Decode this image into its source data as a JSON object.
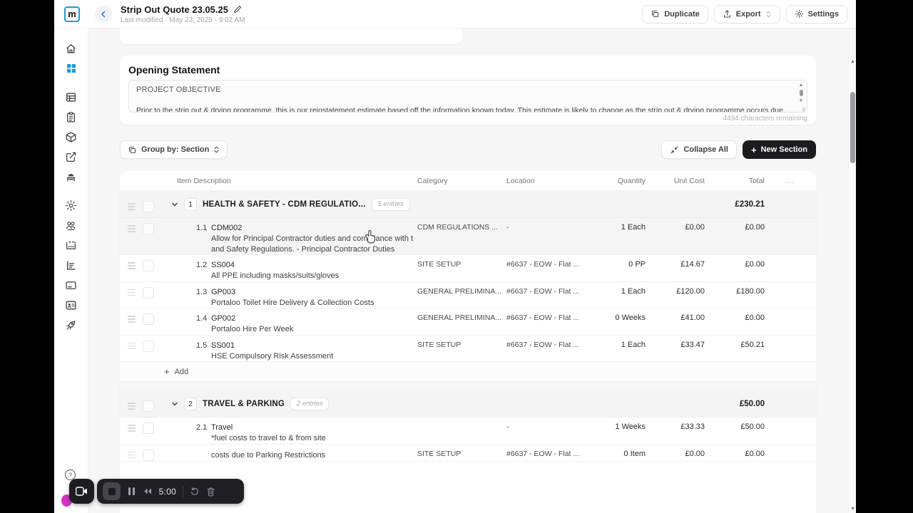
{
  "app": {
    "logo_text": "m",
    "accent_blue": "#1d9ad6",
    "dark_button": "#1c1c1f"
  },
  "header": {
    "title": "Strip Out Quote 23.05.25",
    "last_modified": "Last modified · May 23, 2025 · 9:02 AM",
    "duplicate_label": "Duplicate",
    "export_label": "Export",
    "settings_label": "Settings"
  },
  "sidebar": {
    "items": [
      "home",
      "dashboard",
      "table",
      "clipboard",
      "cube",
      "compose",
      "bench",
      "gear",
      "team",
      "card-dots",
      "report-chart",
      "credit-card",
      "contact-card",
      "rocket"
    ],
    "active_item": "dashboard"
  },
  "opening_statement": {
    "heading": "Opening Statement",
    "body_line1": "PROJECT OBJECTIVE",
    "body_clipped_line": "Prior to the strip out & drying programme, this is our reinstatement estimate based off the information known today. This estimate is likely to change as the strip out & drying programme occurs due",
    "characters_remaining": "4494 characters remaining"
  },
  "toolbar": {
    "group_by_label": "Group by: Section",
    "collapse_all_label": "Collapse All",
    "new_section_label": "New Section"
  },
  "table": {
    "columns": [
      "Item Description",
      "Category",
      "Location",
      "Quantity",
      "Unit Cost",
      "Total"
    ],
    "menu_ellipsis": "...",
    "add_label": "Add",
    "sections": [
      {
        "number": "1",
        "title": "HEALTH & SAFETY - CDM REGULATIO...",
        "entries": "5 entries",
        "total": "£230.21",
        "show_add": true,
        "rows": [
          {
            "num": "1.1",
            "code": "CDM002",
            "desc": [
              "Allow for Principal Contractor duties and compliance with t",
              "and Safety Regulations. - Principal Contractor Duties"
            ],
            "category": "CDM REGULATIONS ...",
            "location": "-",
            "qty": "1 Each",
            "unit": "£0.00",
            "total": "£0.00",
            "hover": true
          },
          {
            "num": "1.2",
            "code": "SS004",
            "desc": [
              "All PPE including masks/suits/gloves"
            ],
            "category": "SITE SETUP",
            "location": "#6637 - EOW - Flat ...",
            "qty": "0 PP",
            "unit": "£14.67",
            "total": "£0.00"
          },
          {
            "num": "1.3",
            "code": "GP003",
            "desc": [
              "Portaloo Toilet Hire Delivery & Collection Costs"
            ],
            "category": "GENERAL PRELIMINA...",
            "location": "#6637 - EOW - Flat ...",
            "qty": "1 Each",
            "unit": "£120.00",
            "total": "£180.00"
          },
          {
            "num": "1.4",
            "code": "GP002",
            "desc": [
              "Portaloo Hire Per Week"
            ],
            "category": "GENERAL PRELIMINA...",
            "location": "#6637 - EOW - Flat ...",
            "qty": "0 Weeks",
            "unit": "£41.00",
            "total": "£0.00"
          },
          {
            "num": "1.5",
            "code": "SS001",
            "desc": [
              "HSE Compulsory Risk Assessment"
            ],
            "category": "SITE SETUP",
            "location": "#6637 - EOW - Flat ...",
            "qty": "1 Each",
            "unit": "£33.47",
            "total": "£50.21"
          }
        ]
      },
      {
        "number": "2",
        "title": "TRAVEL & PARKING",
        "entries": "2 entries",
        "total": "£50.00",
        "show_add": false,
        "rows": [
          {
            "num": "2.1",
            "code": "Travel",
            "desc": [
              "*fuel costs to travel to & from site"
            ],
            "category": "",
            "location": "-",
            "qty": "1 Weeks",
            "unit": "£33.33",
            "total": "£50.00"
          },
          {
            "num": "",
            "code": "",
            "desc": [
              "",
              "costs due to Parking Restrictions"
            ],
            "category": "SITE SETUP",
            "location": "#6637 - EOW - Flat ...",
            "qty": "0 Item",
            "unit": "£0.00",
            "total": "£0.00"
          }
        ]
      }
    ]
  },
  "recorder": {
    "timer": "5:00"
  }
}
